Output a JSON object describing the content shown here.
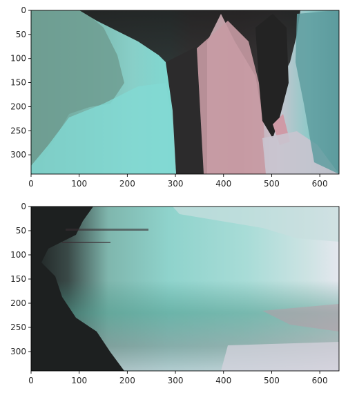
{
  "chart_data": [
    {
      "type": "heatmap",
      "title": "",
      "xlabel": "",
      "ylabel": "",
      "xlim": [
        0,
        640
      ],
      "ylim": [
        340,
        0
      ],
      "x_ticks": [
        0,
        100,
        200,
        300,
        400,
        500,
        600
      ],
      "y_ticks": [
        0,
        50,
        100,
        150,
        200,
        250,
        300
      ],
      "grid": false,
      "content": "image",
      "colors": [
        "#6f9d92",
        "#7fd9d2",
        "#2b2a2a",
        "#c79aa3",
        "#c9c4cf",
        "#4f8f90"
      ]
    },
    {
      "type": "heatmap",
      "title": "",
      "xlabel": "",
      "ylabel": "",
      "xlim": [
        0,
        640
      ],
      "ylim": [
        340,
        0
      ],
      "x_ticks": [
        0,
        100,
        200,
        300,
        400,
        500,
        600
      ],
      "y_ticks": [
        0,
        50,
        100,
        150,
        200,
        250,
        300
      ],
      "grid": false,
      "content": "image",
      "colors": [
        "#1d2020",
        "#8fd8d2",
        "#c7d7dc",
        "#4f9b8d",
        "#7a7176",
        "#e6e7ee"
      ]
    }
  ]
}
